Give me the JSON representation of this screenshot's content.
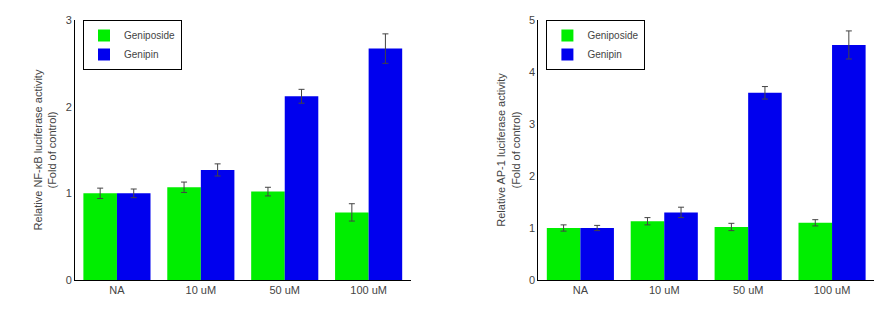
{
  "chart_data": [
    {
      "type": "bar",
      "categories": [
        "NA",
        "10 uM",
        "50 uM",
        "100 uM"
      ],
      "ylabel": "Relative NF-κB luciferase activity\n(Fold of control)",
      "ylim": [
        0,
        3
      ],
      "yticks": [
        0,
        1,
        2,
        3
      ],
      "grid": false,
      "legend": "upper left",
      "series": [
        {
          "name": "Geniposide",
          "color": "#00EE00",
          "values": [
            1.0,
            1.07,
            1.02,
            0.78
          ],
          "errors": [
            0.06,
            0.06,
            0.05,
            0.1
          ]
        },
        {
          "name": "Genipin",
          "color": "#0000EE",
          "values": [
            1.0,
            1.27,
            2.12,
            2.67
          ],
          "errors": [
            0.05,
            0.07,
            0.08,
            0.17
          ]
        }
      ]
    },
    {
      "type": "bar",
      "categories": [
        "NA",
        "10 uM",
        "50 uM",
        "100 uM"
      ],
      "ylabel": "Relative AP-1 luciferase activity\n(Fold of control)",
      "ylim": [
        0,
        5
      ],
      "yticks": [
        0,
        1,
        2,
        3,
        4,
        5
      ],
      "grid": false,
      "legend": "upper left",
      "series": [
        {
          "name": "Geniposide",
          "color": "#00EE00",
          "values": [
            1.0,
            1.13,
            1.02,
            1.1
          ],
          "errors": [
            0.06,
            0.07,
            0.07,
            0.06
          ]
        },
        {
          "name": "Genipin",
          "color": "#0000EE",
          "values": [
            1.0,
            1.3,
            3.6,
            4.52
          ],
          "errors": [
            0.05,
            0.1,
            0.12,
            0.27
          ]
        }
      ]
    }
  ]
}
